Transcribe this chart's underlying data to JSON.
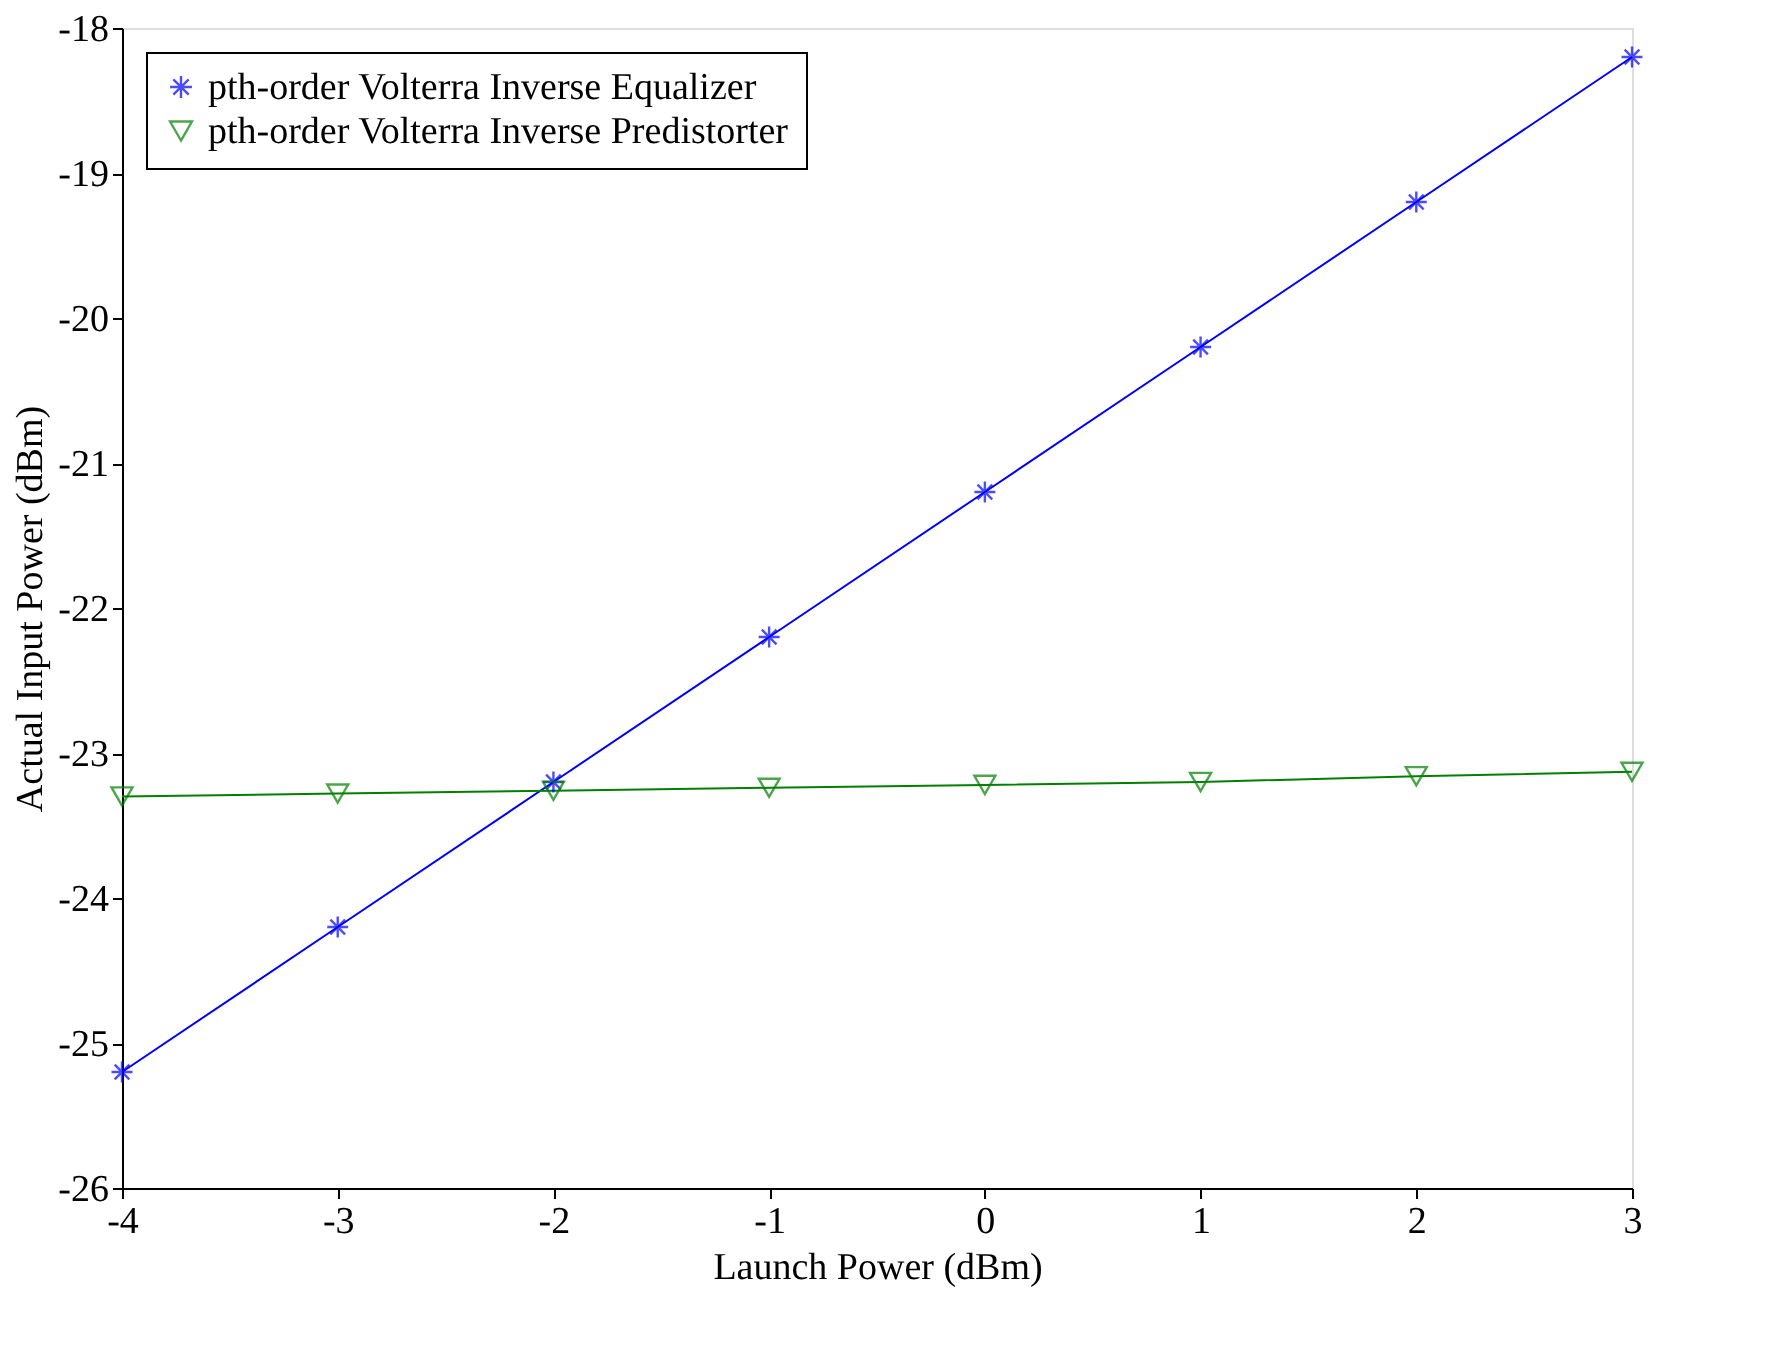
{
  "chart_data": {
    "type": "line",
    "xlabel": "Launch Power (dBm)",
    "ylabel": "Actual Input Power (dBm)",
    "x": [
      -4,
      -3,
      -2,
      -1,
      0,
      1,
      2,
      3
    ],
    "series": [
      {
        "name": "pth-order Volterra Inverse Equalizer",
        "color": "#0000ff",
        "marker": "cross",
        "values": [
          -25.2,
          -24.2,
          -23.2,
          -22.2,
          -21.2,
          -20.2,
          -19.2,
          -18.2
        ]
      },
      {
        "name": "pth-order Volterra Inverse Predistorter",
        "color": "#008000",
        "marker": "triangle",
        "values": [
          -23.3,
          -23.28,
          -23.26,
          -23.24,
          -23.22,
          -23.2,
          -23.16,
          -23.13
        ]
      }
    ],
    "xlim": [
      -4,
      3
    ],
    "xticks": [
      -4,
      -3,
      -2,
      -1,
      0,
      1,
      2,
      3
    ],
    "ylim": [
      -26,
      -18
    ],
    "yticks": [
      -26,
      -25,
      -24,
      -23,
      -22,
      -21,
      -20,
      -19,
      -18
    ],
    "grid": false,
    "legend": "top left",
    "line_style": "solid"
  }
}
